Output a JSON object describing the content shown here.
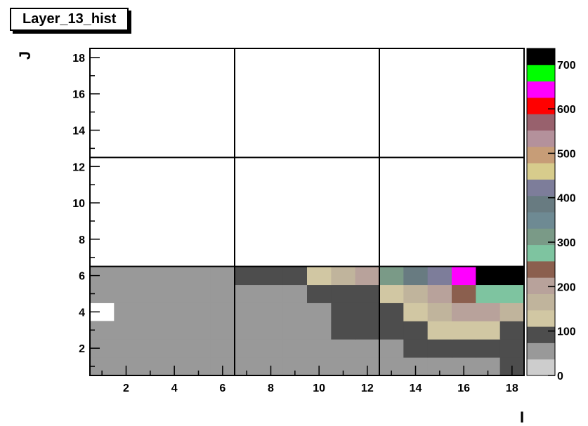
{
  "title": "Layer_13_hist",
  "chart_data": {
    "type": "heatmap",
    "title": "Layer_13_hist",
    "xlabel": "I",
    "ylabel": "J",
    "xlim": [
      0.5,
      18.5
    ],
    "ylim": [
      0.5,
      18.5
    ],
    "x_ticks": [
      "2",
      "4",
      "6",
      "8",
      "10",
      "12",
      "14",
      "16",
      "18"
    ],
    "y_ticks": [
      "2",
      "4",
      "6",
      "8",
      "10",
      "12",
      "14",
      "16",
      "18"
    ],
    "z_range": [
      0,
      736
    ],
    "z_ticks": [
      "0",
      "100",
      "200",
      "300",
      "400",
      "500",
      "600",
      "700"
    ],
    "grid_lines": {
      "x": [
        6.5,
        12.5
      ],
      "y": [
        6.5,
        12.5
      ]
    },
    "palette": [
      "#cdcdcd",
      "#999999",
      "#4d4d4d",
      "#d1c7a3",
      "#c0b49c",
      "#b8a29b",
      "#8b5f4e",
      "#7ec4a0",
      "#7a9a87",
      "#6e8a93",
      "#687b81",
      "#7d7d9a",
      "#d7cc8c",
      "#c79d77",
      "#b4919b",
      "#98616d",
      "#ff0000",
      "#ff00ff",
      "#00ff00",
      "#000000"
    ],
    "rows": [
      {
        "y": 1,
        "values": [
          40,
          40,
          40,
          40,
          40,
          40,
          40,
          40,
          40,
          40,
          40,
          40,
          40,
          40,
          40,
          40,
          40,
          85
        ]
      },
      {
        "y": 2,
        "values": [
          40,
          40,
          40,
          40,
          40,
          40,
          40,
          40,
          40,
          40,
          40,
          40,
          40,
          85,
          85,
          85,
          85,
          85
        ]
      },
      {
        "y": 3,
        "values": [
          40,
          40,
          40,
          40,
          40,
          40,
          40,
          40,
          40,
          40,
          85,
          85,
          85,
          85,
          120,
          120,
          120,
          85
        ]
      },
      {
        "y": 4,
        "values": [
          0,
          40,
          40,
          40,
          40,
          40,
          40,
          40,
          40,
          40,
          85,
          85,
          85,
          120,
          165,
          190,
          190,
          165
        ]
      },
      {
        "y": 5,
        "values": [
          40,
          40,
          40,
          40,
          40,
          40,
          40,
          40,
          40,
          85,
          85,
          85,
          120,
          165,
          215,
          240,
          280,
          280
        ]
      },
      {
        "y": 6,
        "values": [
          40,
          40,
          40,
          40,
          40,
          40,
          85,
          85,
          85,
          120,
          165,
          215,
          310,
          370,
          430,
          650,
          736,
          736
        ]
      },
      {
        "y": 7,
        "values": [
          0,
          0,
          0,
          0,
          0,
          0,
          0,
          0,
          0,
          0,
          0,
          0,
          0,
          0,
          0,
          0,
          0,
          0
        ]
      },
      {
        "y": 8,
        "values": [
          0,
          0,
          0,
          0,
          0,
          0,
          0,
          0,
          0,
          0,
          0,
          0,
          0,
          0,
          0,
          0,
          0,
          0
        ]
      },
      {
        "y": 9,
        "values": [
          0,
          0,
          0,
          0,
          0,
          0,
          0,
          0,
          0,
          0,
          0,
          0,
          0,
          0,
          0,
          0,
          0,
          0
        ]
      },
      {
        "y": 10,
        "values": [
          0,
          0,
          0,
          0,
          0,
          0,
          0,
          0,
          0,
          0,
          0,
          0,
          0,
          0,
          0,
          0,
          0,
          0
        ]
      },
      {
        "y": 11,
        "values": [
          0,
          0,
          0,
          0,
          0,
          0,
          0,
          0,
          0,
          0,
          0,
          0,
          0,
          0,
          0,
          0,
          0,
          0
        ]
      },
      {
        "y": 12,
        "values": [
          0,
          0,
          0,
          0,
          0,
          0,
          0,
          0,
          0,
          0,
          0,
          0,
          0,
          0,
          0,
          0,
          0,
          0
        ]
      },
      {
        "y": 13,
        "values": [
          0,
          0,
          0,
          0,
          0,
          0,
          0,
          0,
          0,
          0,
          0,
          0,
          0,
          0,
          0,
          0,
          0,
          0
        ]
      },
      {
        "y": 14,
        "values": [
          0,
          0,
          0,
          0,
          0,
          0,
          0,
          0,
          0,
          0,
          0,
          0,
          0,
          0,
          0,
          0,
          0,
          0
        ]
      },
      {
        "y": 15,
        "values": [
          0,
          0,
          0,
          0,
          0,
          0,
          0,
          0,
          0,
          0,
          0,
          0,
          0,
          0,
          0,
          0,
          0,
          0
        ]
      },
      {
        "y": 16,
        "values": [
          0,
          0,
          0,
          0,
          0,
          0,
          0,
          0,
          0,
          0,
          0,
          0,
          0,
          0,
          0,
          0,
          0,
          0
        ]
      },
      {
        "y": 17,
        "values": [
          0,
          0,
          0,
          0,
          0,
          0,
          0,
          0,
          0,
          0,
          0,
          0,
          0,
          0,
          0,
          0,
          0,
          0
        ]
      },
      {
        "y": 18,
        "values": [
          0,
          0,
          0,
          0,
          0,
          0,
          0,
          0,
          0,
          0,
          0,
          0,
          0,
          0,
          0,
          0,
          0,
          0
        ]
      }
    ]
  }
}
